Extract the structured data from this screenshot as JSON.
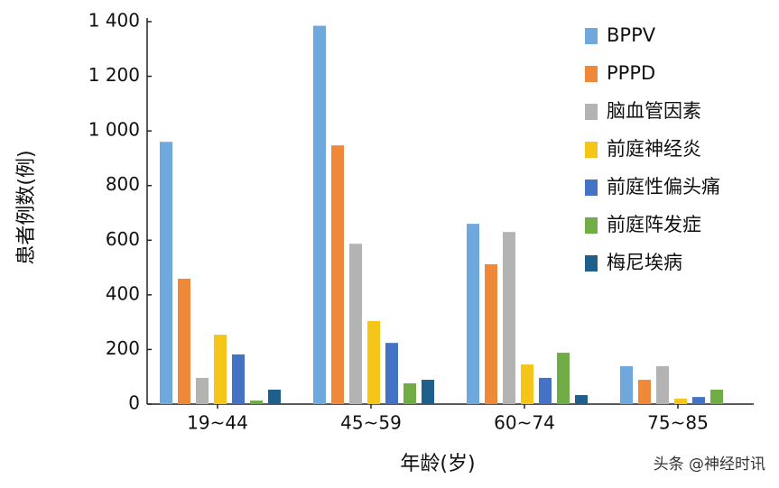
{
  "chart_data": {
    "type": "bar",
    "x_label": "年龄(岁)",
    "y_label": "患者例数(例)",
    "watermark": "头条 @神经时讯",
    "categories": [
      "19~44",
      "45~59",
      "60~74",
      "75~85"
    ],
    "series": [
      {
        "name": "BPPV",
        "color": "#6fa8dc",
        "values": [
          960,
          1385,
          660,
          139
        ]
      },
      {
        "name": "PPPD",
        "color": "#f0883a",
        "values": [
          459,
          947,
          512,
          89
        ]
      },
      {
        "name": "脑血管因素",
        "color": "#b3b3b3",
        "values": [
          96,
          587,
          630,
          139
        ]
      },
      {
        "name": "前庭神经炎",
        "color": "#f5c518",
        "values": [
          254,
          304,
          145,
          20
        ]
      },
      {
        "name": "前庭性偏头痛",
        "color": "#4472c4",
        "values": [
          182,
          224,
          96,
          26
        ]
      },
      {
        "name": "前庭阵发症",
        "color": "#70ad47",
        "values": [
          13,
          76,
          188,
          53
        ]
      },
      {
        "name": "梅尼埃病",
        "color": "#1f5f8b",
        "values": [
          53,
          89,
          33,
          null
        ]
      }
    ],
    "ylim": [
      0,
      1400
    ],
    "yticks": [
      0,
      200,
      400,
      600,
      800,
      {
        "value": 1000,
        "label": "1 000"
      },
      {
        "value": 1200,
        "label": "1 200"
      },
      {
        "value": 1400,
        "label": "1 400"
      }
    ]
  }
}
